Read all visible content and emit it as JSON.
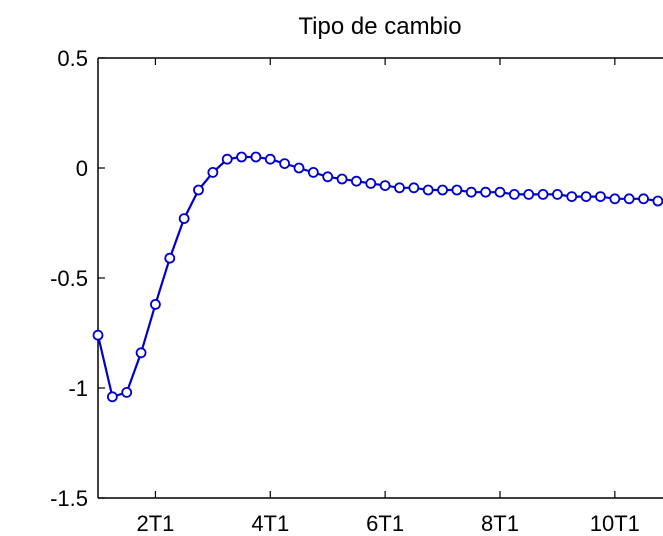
{
  "chart_data": {
    "type": "line",
    "title": "Tipo de cambio",
    "xlabel": "",
    "ylabel": "",
    "xlim": [
      1,
      11.1
    ],
    "ylim": [
      -1.5,
      0.5
    ],
    "x_ticks": [
      {
        "value": 2,
        "label": "2T1"
      },
      {
        "value": 4,
        "label": "4T1"
      },
      {
        "value": 6,
        "label": "6T1"
      },
      {
        "value": 8,
        "label": "8T1"
      },
      {
        "value": 10,
        "label": "10T1"
      }
    ],
    "y_ticks": [
      {
        "value": 0.5,
        "label": "0.5"
      },
      {
        "value": 0,
        "label": "0"
      },
      {
        "value": -0.5,
        "label": "-0.5"
      },
      {
        "value": -1,
        "label": "-1"
      },
      {
        "value": -1.5,
        "label": "-1.5"
      }
    ],
    "grid": false,
    "series": [
      {
        "color": "#0000cc",
        "marker": "circle",
        "x": [
          1.0,
          1.25,
          1.5,
          1.75,
          2.0,
          2.25,
          2.5,
          2.75,
          3.0,
          3.25,
          3.5,
          3.75,
          4.0,
          4.25,
          4.5,
          4.75,
          5.0,
          5.25,
          5.5,
          5.75,
          6.0,
          6.25,
          6.5,
          6.75,
          7.0,
          7.25,
          7.5,
          7.75,
          8.0,
          8.25,
          8.5,
          8.75,
          9.0,
          9.25,
          9.5,
          9.75,
          10.0,
          10.25,
          10.5,
          10.75,
          11.0
        ],
        "y": [
          -0.76,
          -1.04,
          -1.02,
          -0.84,
          -0.62,
          -0.41,
          -0.23,
          -0.1,
          -0.02,
          0.04,
          0.05,
          0.05,
          0.04,
          0.02,
          0.0,
          -0.02,
          -0.04,
          -0.05,
          -0.06,
          -0.07,
          -0.08,
          -0.09,
          -0.09,
          -0.1,
          -0.1,
          -0.1,
          -0.11,
          -0.11,
          -0.11,
          -0.12,
          -0.12,
          -0.12,
          -0.12,
          -0.13,
          -0.13,
          -0.13,
          -0.14,
          -0.14,
          -0.14,
          -0.15,
          -0.15
        ]
      }
    ]
  }
}
